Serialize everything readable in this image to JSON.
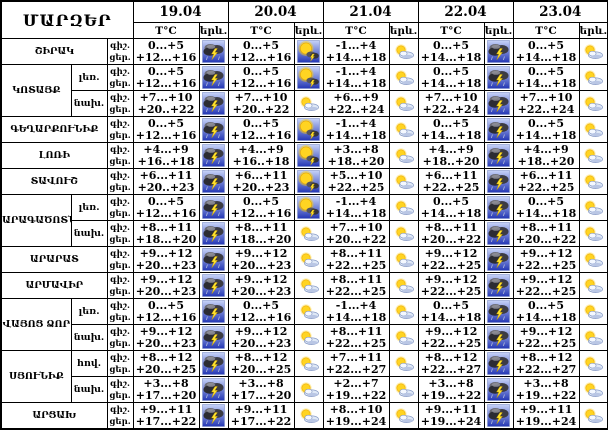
{
  "table": {
    "corner_title": "ՄԱՐԶԵՐ",
    "dates": [
      "19.04",
      "20.04",
      "21.04",
      "22.04",
      "23.04"
    ],
    "col_headers": {
      "temp": "T°C",
      "phenomenon": "երև."
    },
    "row_line_labels": {
      "night": "գիշ.",
      "day": "ցեր."
    },
    "icon_legend": {
      "storm": "thunderstorm-icon",
      "sun_storm": "sun-thunderstorm-icon",
      "partly": "partly-cloudy-icon"
    },
    "colors": {
      "border": "#000000",
      "text": "#000000",
      "icon_bg_top": "#c7d3f8",
      "icon_bg_bottom": "#2336b4",
      "lightning": "#ffe32e",
      "cloud_dark": "#3c3c44",
      "sun": "#ffd422"
    },
    "rows": [
      {
        "region": "ՇԻՐԱԿ",
        "region_span": 1,
        "zone": null,
        "forecast": [
          {
            "night": "0...+5",
            "day": "+12...+16",
            "icon": "storm"
          },
          {
            "night": "0...+5",
            "day": "+12...+16",
            "icon": "sun_storm"
          },
          {
            "night": "-1...+4",
            "day": "+14...+18",
            "icon": "partly"
          },
          {
            "night": "0...+5",
            "day": "+14...+18",
            "icon": "storm"
          },
          {
            "night": "0...+5",
            "day": "+14...+18",
            "icon": "partly"
          }
        ]
      },
      {
        "region": "ԿՈՏԱՅՔ",
        "region_span": 2,
        "zone": "լեռ.",
        "forecast": [
          {
            "night": "0...+5",
            "day": "+12...+16",
            "icon": "storm"
          },
          {
            "night": "0...+5",
            "day": "+12...+16",
            "icon": "sun_storm"
          },
          {
            "night": "-1...+4",
            "day": "+14...+18",
            "icon": "partly"
          },
          {
            "night": "0...+5",
            "day": "+14...+18",
            "icon": "storm"
          },
          {
            "night": "0...+5",
            "day": "+14...+18",
            "icon": "partly"
          }
        ]
      },
      {
        "region": null,
        "zone": "նախ.",
        "forecast": [
          {
            "night": "+7...+10",
            "day": "+20..+22",
            "icon": "storm"
          },
          {
            "night": "+7...+10",
            "day": "+20..+22",
            "icon": "partly"
          },
          {
            "night": "+6...+9",
            "day": "+22..+24",
            "icon": "partly"
          },
          {
            "night": "+7...+10",
            "day": "+22..+24",
            "icon": "storm"
          },
          {
            "night": "+7...+10",
            "day": "+22..+24",
            "icon": "partly"
          }
        ]
      },
      {
        "region": "ԳԵՂԱՐՔՈՒՆԻՔ",
        "region_span": 1,
        "zone": null,
        "forecast": [
          {
            "night": "0...+5",
            "day": "+12...+16",
            "icon": "storm"
          },
          {
            "night": "0...+5",
            "day": "+12...+16",
            "icon": "sun_storm"
          },
          {
            "night": "-1...+4",
            "day": "+14...+18",
            "icon": "partly"
          },
          {
            "night": "0...+5",
            "day": "+14...+18",
            "icon": "storm"
          },
          {
            "night": "0...+5",
            "day": "+14...+18",
            "icon": "partly"
          }
        ]
      },
      {
        "region": "ԼՈՌԻ",
        "region_span": 1,
        "zone": null,
        "forecast": [
          {
            "night": "+4...+9",
            "day": "+16..+18",
            "icon": "storm"
          },
          {
            "night": "+4...+9",
            "day": "+16..+18",
            "icon": "sun_storm"
          },
          {
            "night": "+3...+8",
            "day": "+18..+20",
            "icon": "partly"
          },
          {
            "night": "+4...+9",
            "day": "+18..+20",
            "icon": "storm"
          },
          {
            "night": "+4...+9",
            "day": "+18..+20",
            "icon": "partly"
          }
        ]
      },
      {
        "region": "ՏԱՎՈՒՇ",
        "region_span": 1,
        "zone": null,
        "forecast": [
          {
            "night": "+6...+11",
            "day": "+20..+23",
            "icon": "storm"
          },
          {
            "night": "+6...+11",
            "day": "+20..+23",
            "icon": "sun_storm"
          },
          {
            "night": "+5...+10",
            "day": "+22..+25",
            "icon": "partly"
          },
          {
            "night": "+6...+11",
            "day": "+22..+25",
            "icon": "storm"
          },
          {
            "night": "+6...+11",
            "day": "+22..+25",
            "icon": "partly"
          }
        ]
      },
      {
        "region": "ԱՐԱԳԱԾՈՏՆ",
        "region_span": 2,
        "zone": "լեռ.",
        "forecast": [
          {
            "night": "0...+5",
            "day": "+12...+16",
            "icon": "storm"
          },
          {
            "night": "0...+5",
            "day": "+12...+16",
            "icon": "sun_storm"
          },
          {
            "night": "-1...+4",
            "day": "+14...+18",
            "icon": "partly"
          },
          {
            "night": "0...+5",
            "day": "+14...+18",
            "icon": "storm"
          },
          {
            "night": "0...+5",
            "day": "+14...+18",
            "icon": "partly"
          }
        ]
      },
      {
        "region": null,
        "zone": "նախ.",
        "forecast": [
          {
            "night": "+8...+11",
            "day": "+18...+20",
            "icon": "storm"
          },
          {
            "night": "+8...+11",
            "day": "+18...+20",
            "icon": "partly"
          },
          {
            "night": "+7...+10",
            "day": "+20...+22",
            "icon": "partly"
          },
          {
            "night": "+8...+11",
            "day": "+20...+22",
            "icon": "storm"
          },
          {
            "night": "+8...+11",
            "day": "+20...+22",
            "icon": "partly"
          }
        ]
      },
      {
        "region": "ԱՐԱՐԱՏ",
        "region_span": 1,
        "zone": null,
        "forecast": [
          {
            "night": "+9...+12",
            "day": "+20...+23",
            "icon": "storm"
          },
          {
            "night": "+9...+12",
            "day": "+20...+23",
            "icon": "partly"
          },
          {
            "night": "+8...+11",
            "day": "+22...+25",
            "icon": "partly"
          },
          {
            "night": "+9...+12",
            "day": "+22...+25",
            "icon": "storm"
          },
          {
            "night": "+9...+12",
            "day": "+22...+25",
            "icon": "partly"
          }
        ]
      },
      {
        "region": "ԱՐՄԱՎԻՐ",
        "region_span": 1,
        "zone": null,
        "forecast": [
          {
            "night": "+9...+12",
            "day": "+20...+23",
            "icon": "storm"
          },
          {
            "night": "+9...+12",
            "day": "+20...+23",
            "icon": "partly"
          },
          {
            "night": "+8...+11",
            "day": "+22...+25",
            "icon": "partly"
          },
          {
            "night": "+9...+12",
            "day": "+22...+25",
            "icon": "storm"
          },
          {
            "night": "+9...+12",
            "day": "+22...+25",
            "icon": "partly"
          }
        ]
      },
      {
        "region": "ՎԱՅՈՑ ՁՈՐ",
        "region_span": 2,
        "zone": "լեռ.",
        "forecast": [
          {
            "night": "0...+5",
            "day": "+12...+16",
            "icon": "storm"
          },
          {
            "night": "0...+5",
            "day": "+12...+16",
            "icon": "partly"
          },
          {
            "night": "-1...+4",
            "day": "+14...+18",
            "icon": "partly"
          },
          {
            "night": "0...+5",
            "day": "+14...+18",
            "icon": "storm"
          },
          {
            "night": "0...+5",
            "day": "+14...+18",
            "icon": "partly"
          }
        ]
      },
      {
        "region": null,
        "zone": "նախ.",
        "forecast": [
          {
            "night": "+9...+12",
            "day": "+20...+23",
            "icon": "storm"
          },
          {
            "night": "+9...+12",
            "day": "+20...+23",
            "icon": "partly"
          },
          {
            "night": "+8...+11",
            "day": "+22...+25",
            "icon": "partly"
          },
          {
            "night": "+9...+12",
            "day": "+22...+25",
            "icon": "storm"
          },
          {
            "night": "+9...+12",
            "day": "+22...+25",
            "icon": "partly"
          }
        ]
      },
      {
        "region": "ՍՅՈՒՆԻՔ",
        "region_span": 2,
        "zone": "հով.",
        "forecast": [
          {
            "night": "+8...+12",
            "day": "+20...+25",
            "icon": "storm"
          },
          {
            "night": "+8...+12",
            "day": "+20...+25",
            "icon": "partly"
          },
          {
            "night": "+7...+11",
            "day": "+22...+27",
            "icon": "partly"
          },
          {
            "night": "+8...+12",
            "day": "+22...+27",
            "icon": "storm"
          },
          {
            "night": "+8...+12",
            "day": "+22...+27",
            "icon": "partly"
          }
        ]
      },
      {
        "region": null,
        "zone": "նախ.",
        "forecast": [
          {
            "night": "+3...+8",
            "day": "+17...+20",
            "icon": "storm"
          },
          {
            "night": "+3...+8",
            "day": "+17...+20",
            "icon": "partly"
          },
          {
            "night": "+2...+7",
            "day": "+19...+22",
            "icon": "partly"
          },
          {
            "night": "+3...+8",
            "day": "+19...+22",
            "icon": "storm"
          },
          {
            "night": "+3...+8",
            "day": "+19...+22",
            "icon": "partly"
          }
        ]
      },
      {
        "region": "ԱՐՑԱԽ",
        "region_span": 1,
        "zone": null,
        "forecast": [
          {
            "night": "+9...+11",
            "day": "+17...+22",
            "icon": "storm"
          },
          {
            "night": "+9...+11",
            "day": "+17...+22",
            "icon": "partly"
          },
          {
            "night": "+8...+10",
            "day": "+19...+24",
            "icon": "partly"
          },
          {
            "night": "+9...+11",
            "day": "+19...+24",
            "icon": "storm"
          },
          {
            "night": "+9...+11",
            "day": "+19...+24",
            "icon": "partly"
          }
        ]
      }
    ]
  }
}
